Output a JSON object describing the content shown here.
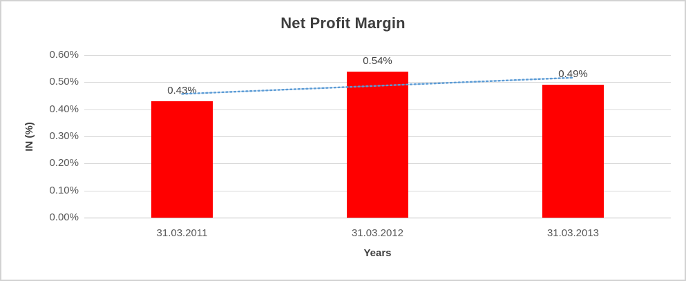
{
  "chart_data": {
    "type": "bar",
    "title": "Net Profit Margin",
    "xlabel": "Years",
    "ylabel": "IN (%)",
    "categories": [
      "31.03.2011",
      "31.03.2012",
      "31.03.2013"
    ],
    "values": [
      0.43,
      0.54,
      0.49
    ],
    "data_labels": [
      "0.43%",
      "0.54%",
      "0.49%"
    ],
    "ylim": [
      0,
      0.6
    ],
    "yticks": [
      {
        "value": 0.0,
        "label": "0.00%"
      },
      {
        "value": 0.1,
        "label": "0.10%"
      },
      {
        "value": 0.2,
        "label": "0.20%"
      },
      {
        "value": 0.3,
        "label": "0.30%"
      },
      {
        "value": 0.4,
        "label": "0.40%"
      },
      {
        "value": 0.5,
        "label": "0.50%"
      },
      {
        "value": 0.6,
        "label": "0.60%"
      }
    ],
    "grid": true,
    "legend": "none",
    "trendline": {
      "type": "linear",
      "style": "dotted",
      "color": "#5B9BD5",
      "values": [
        0.4567,
        0.4867,
        0.5167
      ]
    },
    "colors": {
      "bar": "#FF0000",
      "gridline": "#D9D9D9",
      "axis_line": "#BFBFBF",
      "title_text": "#3F3F3F",
      "tick_text": "#595959",
      "data_label_text": "#404040"
    }
  }
}
